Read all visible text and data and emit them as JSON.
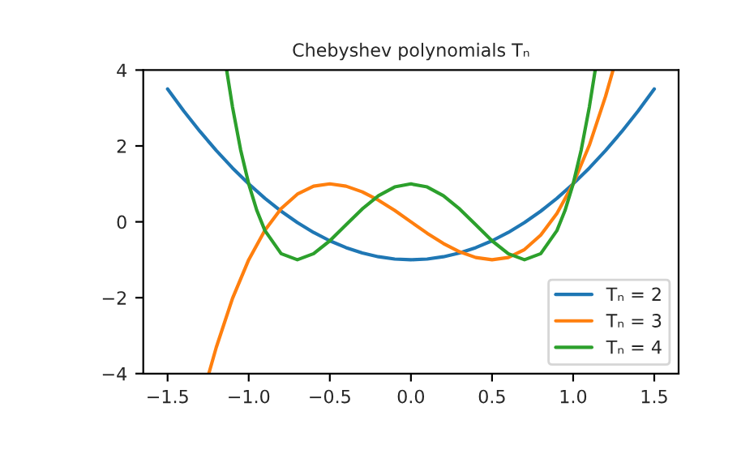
{
  "chart_data": {
    "type": "line",
    "title": "Chebyshev polynomials Tₙ",
    "series": [
      {
        "name": "Tₙ = 2",
        "color": "#1f77b4",
        "x": [
          -1.5,
          -1.4,
          -1.3,
          -1.2,
          -1.1,
          -1.0,
          -0.9,
          -0.8,
          -0.7,
          -0.6,
          -0.5,
          -0.4,
          -0.3,
          -0.2,
          -0.1,
          0,
          0.1,
          0.2,
          0.3,
          0.4,
          0.5,
          0.6,
          0.7,
          0.8,
          0.9,
          1.0,
          1.1,
          1.2,
          1.3,
          1.4,
          1.5
        ],
        "values": [
          3.5,
          2.92,
          2.38,
          1.88,
          1.42,
          1.0,
          0.62,
          0.28,
          -0.02,
          -0.28,
          -0.5,
          -0.68,
          -0.82,
          -0.92,
          -0.98,
          -1.0,
          -0.98,
          -0.92,
          -0.82,
          -0.68,
          -0.5,
          -0.28,
          -0.02,
          0.28,
          0.62,
          1.0,
          1.42,
          1.88,
          2.38,
          2.92,
          3.5
        ]
      },
      {
        "name": "Tₙ = 3",
        "color": "#ff7f0e",
        "x": [
          -1.246,
          -1.2,
          -1.1,
          -1.0,
          -0.9,
          -0.8,
          -0.7,
          -0.6,
          -0.5,
          -0.4,
          -0.3,
          -0.2,
          -0.1,
          0,
          0.1,
          0.2,
          0.3,
          0.4,
          0.5,
          0.6,
          0.7,
          0.8,
          0.9,
          1.0,
          1.1,
          1.2,
          1.246
        ],
        "values": [
          -4.0,
          -3.31,
          -2.02,
          -1.0,
          -0.22,
          0.35,
          0.73,
          0.94,
          1.0,
          0.94,
          0.79,
          0.57,
          0.3,
          0,
          -0.3,
          -0.57,
          -0.79,
          -0.94,
          -1.0,
          -0.94,
          -0.73,
          -0.35,
          0.22,
          1.0,
          2.02,
          3.31,
          4.0
        ]
      },
      {
        "name": "Tₙ = 4",
        "color": "#2ca02c",
        "x": [
          -1.136,
          -1.1,
          -1.05,
          -1.0,
          -0.95,
          -0.9,
          -0.8,
          -0.7,
          -0.6,
          -0.5,
          -0.4,
          -0.3,
          -0.2,
          -0.1,
          0,
          0.1,
          0.2,
          0.3,
          0.4,
          0.5,
          0.6,
          0.7,
          0.8,
          0.9,
          0.95,
          1.0,
          1.05,
          1.1,
          1.136
        ],
        "values": [
          4.0,
          3.03,
          1.9,
          1.0,
          0.3,
          -0.23,
          -0.84,
          -1.0,
          -0.84,
          -0.5,
          -0.08,
          0.34,
          0.69,
          0.92,
          1.0,
          0.92,
          0.69,
          0.34,
          -0.08,
          -0.5,
          -0.84,
          -1.0,
          -0.84,
          -0.23,
          0.3,
          1.0,
          1.9,
          3.03,
          4.0
        ]
      }
    ],
    "xlim": [
      -1.65,
      1.65
    ],
    "ylim": [
      -4,
      4
    ],
    "xticks": [
      {
        "value": -1.5,
        "label": "−1.5"
      },
      {
        "value": -1.0,
        "label": "−1.0"
      },
      {
        "value": -0.5,
        "label": "−0.5"
      },
      {
        "value": 0,
        "label": "0.0"
      },
      {
        "value": 0.5,
        "label": "0.5"
      },
      {
        "value": 1.0,
        "label": "1.0"
      },
      {
        "value": 1.5,
        "label": "1.5"
      }
    ],
    "yticks": [
      {
        "value": -4,
        "label": "−4"
      },
      {
        "value": -2,
        "label": "−2"
      },
      0,
      2,
      4
    ],
    "legend": "bottom right",
    "grid": false,
    "marker": "none",
    "line_style": "solid"
  }
}
